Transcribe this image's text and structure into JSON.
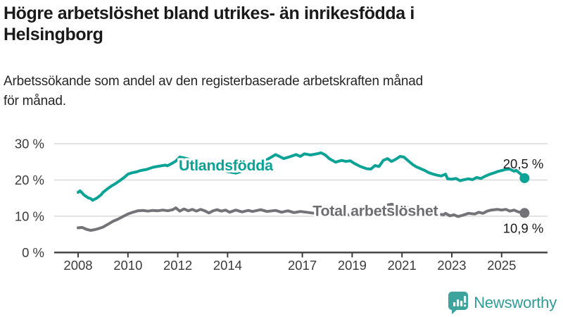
{
  "header": {
    "title_lines": [
      "Högre arbetslöshet bland utrikes- än inrikesfödda i",
      "Helsingborg"
    ],
    "subtitle_lines": [
      "Arbetssökande som andel av den registerbaserade arbetskraften månad",
      "för månad."
    ]
  },
  "branding": {
    "logo_text": "Newsworthy",
    "logo_color": "#2e9d96",
    "logo_icon": "bar-chart-speech-bubble",
    "icon_fill": "#3da49d"
  },
  "chart_data": {
    "type": "line",
    "title": "Högre arbetslöshet bland utrikes- än inrikesfödda i Helsingborg",
    "subtitle": "Arbetssökande som andel av den registerbaserade arbetskraften månad för månad.",
    "unit": "%",
    "ylim": [
      0,
      30
    ],
    "grid": "horizontal",
    "axis_color": "#3c3c3c",
    "grid_color": "#d9d9d9",
    "tick_label_color": "#3b3b3b",
    "value_label_color": "#1a1a1a",
    "y_ticks": [
      {
        "value": 0,
        "label": "0 %"
      },
      {
        "value": 10,
        "label": "10 %"
      },
      {
        "value": 20,
        "label": "20 %"
      },
      {
        "value": 30,
        "label": "30 %"
      }
    ],
    "x_ticks": [
      {
        "year": 2008,
        "label": "2008"
      },
      {
        "year": 2010,
        "label": "2010"
      },
      {
        "year": 2012,
        "label": "2012"
      },
      {
        "year": 2014,
        "label": "2014"
      },
      {
        "year": 2017,
        "label": "2017"
      },
      {
        "year": 2019,
        "label": "2019"
      },
      {
        "year": 2021,
        "label": "2021"
      },
      {
        "year": 2023,
        "label": "2023"
      },
      {
        "year": 2025,
        "label": "2025"
      }
    ],
    "series": [
      {
        "name": "Utlandsfödda",
        "color": "#0aa396",
        "label_color": "#0aa396",
        "end_label": "20,5 %",
        "end_value": 20.5,
        "end_label_side": "above",
        "label_anchor": {
          "year": 2013.93,
          "value": 22.6
        },
        "points": [
          [
            2008.0,
            16.6
          ],
          [
            2008.08,
            17.0
          ],
          [
            2008.25,
            15.8
          ],
          [
            2008.42,
            15.0
          ],
          [
            2008.5,
            14.9
          ],
          [
            2008.58,
            14.4
          ],
          [
            2008.75,
            15.0
          ],
          [
            2008.92,
            15.9
          ],
          [
            2009.0,
            16.6
          ],
          [
            2009.17,
            17.5
          ],
          [
            2009.33,
            18.3
          ],
          [
            2009.5,
            19.0
          ],
          [
            2009.67,
            19.8
          ],
          [
            2009.83,
            20.6
          ],
          [
            2010.0,
            21.6
          ],
          [
            2010.17,
            22.0
          ],
          [
            2010.33,
            22.2
          ],
          [
            2010.5,
            22.6
          ],
          [
            2010.75,
            22.9
          ],
          [
            2011.0,
            23.5
          ],
          [
            2011.17,
            23.7
          ],
          [
            2011.33,
            23.9
          ],
          [
            2011.5,
            24.1
          ],
          [
            2011.58,
            23.9
          ],
          [
            2011.75,
            24.5
          ],
          [
            2011.92,
            25.2
          ],
          [
            2012.08,
            26.3
          ],
          [
            2012.25,
            26.1
          ],
          [
            2012.5,
            25.6
          ],
          [
            2012.75,
            25.0
          ],
          [
            2013.0,
            24.4
          ],
          [
            2013.25,
            23.8
          ],
          [
            2013.5,
            23.2
          ],
          [
            2013.75,
            22.7
          ],
          [
            2014.0,
            22.3
          ],
          [
            2014.33,
            21.9
          ],
          [
            2014.58,
            22.4
          ],
          [
            2014.83,
            23.0
          ],
          [
            2015.08,
            23.8
          ],
          [
            2015.33,
            24.7
          ],
          [
            2015.58,
            25.6
          ],
          [
            2015.83,
            26.6
          ],
          [
            2015.92,
            27.0
          ],
          [
            2016.08,
            26.5
          ],
          [
            2016.25,
            25.9
          ],
          [
            2016.5,
            26.4
          ],
          [
            2016.75,
            27.0
          ],
          [
            2016.92,
            26.5
          ],
          [
            2017.08,
            27.2
          ],
          [
            2017.33,
            26.9
          ],
          [
            2017.58,
            27.2
          ],
          [
            2017.75,
            27.5
          ],
          [
            2017.92,
            26.9
          ],
          [
            2018.08,
            25.9
          ],
          [
            2018.33,
            24.9
          ],
          [
            2018.58,
            25.4
          ],
          [
            2018.75,
            25.1
          ],
          [
            2018.92,
            25.3
          ],
          [
            2019.08,
            24.6
          ],
          [
            2019.33,
            23.7
          ],
          [
            2019.58,
            23.1
          ],
          [
            2019.75,
            23.0
          ],
          [
            2019.92,
            24.0
          ],
          [
            2020.08,
            23.7
          ],
          [
            2020.25,
            25.4
          ],
          [
            2020.42,
            25.9
          ],
          [
            2020.58,
            25.1
          ],
          [
            2020.75,
            25.7
          ],
          [
            2020.92,
            26.5
          ],
          [
            2021.08,
            26.3
          ],
          [
            2021.25,
            25.3
          ],
          [
            2021.42,
            24.3
          ],
          [
            2021.58,
            23.6
          ],
          [
            2021.75,
            23.1
          ],
          [
            2021.92,
            22.6
          ],
          [
            2022.08,
            22.0
          ],
          [
            2022.25,
            21.6
          ],
          [
            2022.42,
            21.3
          ],
          [
            2022.58,
            21.1
          ],
          [
            2022.75,
            21.6
          ],
          [
            2022.83,
            20.3
          ],
          [
            2023.0,
            20.2
          ],
          [
            2023.17,
            20.4
          ],
          [
            2023.33,
            19.8
          ],
          [
            2023.5,
            20.1
          ],
          [
            2023.67,
            20.3
          ],
          [
            2023.83,
            20.1
          ],
          [
            2024.0,
            20.7
          ],
          [
            2024.17,
            20.4
          ],
          [
            2024.33,
            21.0
          ],
          [
            2024.5,
            21.5
          ],
          [
            2024.67,
            21.9
          ],
          [
            2024.83,
            22.3
          ],
          [
            2025.0,
            22.6
          ],
          [
            2025.17,
            22.9
          ],
          [
            2025.33,
            23.0
          ],
          [
            2025.5,
            22.4
          ],
          [
            2025.58,
            22.7
          ],
          [
            2025.75,
            21.7
          ],
          [
            2025.92,
            20.5
          ]
        ]
      },
      {
        "name": "Total arbetslöshet",
        "color": "#747478",
        "label_color": "#6d6d70",
        "end_label": "10,9 %",
        "end_value": 10.9,
        "end_label_side": "below",
        "label_anchor": {
          "year": 2019.93,
          "value": 10.1
        },
        "points": [
          [
            2008.0,
            6.8
          ],
          [
            2008.17,
            6.9
          ],
          [
            2008.33,
            6.4
          ],
          [
            2008.5,
            6.1
          ],
          [
            2008.67,
            6.3
          ],
          [
            2008.83,
            6.6
          ],
          [
            2009.0,
            7.0
          ],
          [
            2009.2,
            7.8
          ],
          [
            2009.4,
            8.6
          ],
          [
            2009.6,
            9.2
          ],
          [
            2009.8,
            9.9
          ],
          [
            2010.0,
            10.6
          ],
          [
            2010.2,
            11.1
          ],
          [
            2010.4,
            11.5
          ],
          [
            2010.6,
            11.6
          ],
          [
            2010.8,
            11.4
          ],
          [
            2011.0,
            11.6
          ],
          [
            2011.2,
            11.5
          ],
          [
            2011.4,
            11.7
          ],
          [
            2011.6,
            11.5
          ],
          [
            2011.8,
            11.8
          ],
          [
            2011.92,
            12.3
          ],
          [
            2012.08,
            11.4
          ],
          [
            2012.25,
            12.0
          ],
          [
            2012.42,
            11.5
          ],
          [
            2012.58,
            11.9
          ],
          [
            2012.75,
            11.4
          ],
          [
            2012.92,
            11.9
          ],
          [
            2013.08,
            11.5
          ],
          [
            2013.25,
            10.9
          ],
          [
            2013.42,
            11.5
          ],
          [
            2013.58,
            11.8
          ],
          [
            2013.75,
            11.4
          ],
          [
            2013.92,
            11.7
          ],
          [
            2014.08,
            11.1
          ],
          [
            2014.33,
            11.7
          ],
          [
            2014.58,
            11.2
          ],
          [
            2014.83,
            11.6
          ],
          [
            2015.0,
            11.3
          ],
          [
            2015.33,
            11.8
          ],
          [
            2015.58,
            11.3
          ],
          [
            2015.92,
            11.6
          ],
          [
            2016.17,
            11.1
          ],
          [
            2016.42,
            11.5
          ],
          [
            2016.67,
            11.0
          ],
          [
            2016.92,
            11.3
          ],
          [
            2017.17,
            11.1
          ],
          [
            2017.5,
            10.8
          ],
          [
            2017.83,
            10.5
          ],
          [
            2018.17,
            10.3
          ],
          [
            2018.5,
            10.2
          ],
          [
            2018.83,
            10.4
          ],
          [
            2019.17,
            10.5
          ],
          [
            2019.5,
            10.7
          ],
          [
            2019.83,
            10.9
          ],
          [
            2020.08,
            11.3
          ],
          [
            2020.25,
            12.4
          ],
          [
            2020.42,
            13.1
          ],
          [
            2020.58,
            13.3
          ],
          [
            2020.75,
            13.1
          ],
          [
            2020.92,
            12.9
          ],
          [
            2021.17,
            12.5
          ],
          [
            2021.42,
            12.1
          ],
          [
            2021.67,
            11.6
          ],
          [
            2021.92,
            11.2
          ],
          [
            2022.17,
            10.8
          ],
          [
            2022.42,
            10.6
          ],
          [
            2022.67,
            10.4
          ],
          [
            2022.75,
            10.8
          ],
          [
            2022.92,
            10.1
          ],
          [
            2023.08,
            10.4
          ],
          [
            2023.25,
            9.9
          ],
          [
            2023.5,
            10.4
          ],
          [
            2023.67,
            10.8
          ],
          [
            2023.92,
            10.6
          ],
          [
            2024.08,
            11.1
          ],
          [
            2024.25,
            10.8
          ],
          [
            2024.42,
            11.4
          ],
          [
            2024.58,
            11.7
          ],
          [
            2024.83,
            11.9
          ],
          [
            2025.0,
            11.7
          ],
          [
            2025.17,
            11.9
          ],
          [
            2025.33,
            11.4
          ],
          [
            2025.5,
            11.7
          ],
          [
            2025.67,
            11.2
          ],
          [
            2025.92,
            10.9
          ]
        ]
      }
    ]
  }
}
